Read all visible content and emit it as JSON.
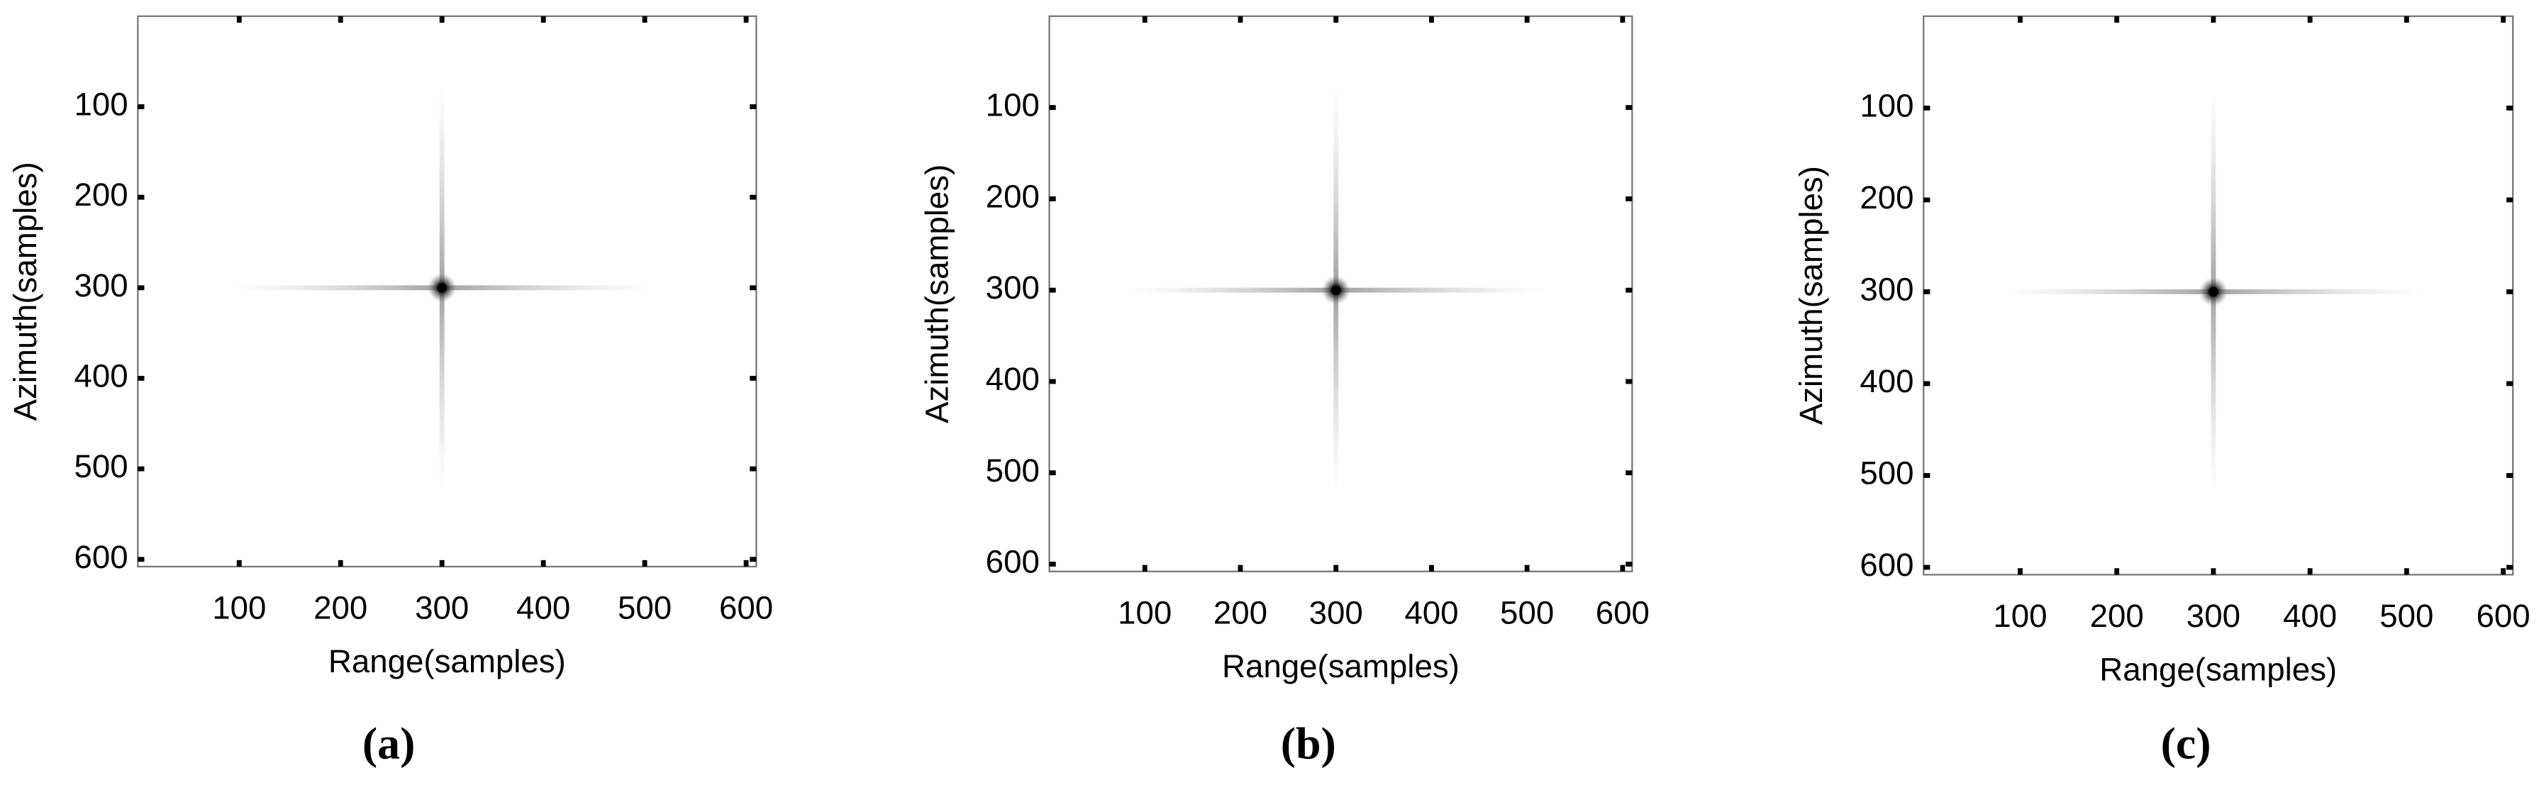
{
  "chart_data": [
    {
      "type": "image",
      "caption": "(a)",
      "xlabel": "Range(samples)",
      "ylabel": "Azimuth(samples)",
      "xlim": [
        0,
        610
      ],
      "ylim": [
        0,
        608
      ],
      "y_inverted": true,
      "xticks": [
        100,
        200,
        300,
        400,
        500,
        600
      ],
      "yticks": [
        100,
        200,
        300,
        400,
        500,
        600
      ],
      "points": {
        "x": [
          300
        ],
        "y": [
          300
        ]
      },
      "color": "#000000"
    },
    {
      "type": "image",
      "caption": "(b)",
      "xlabel": "Range(samples)",
      "ylabel": "Azimuth(samples)",
      "xlim": [
        0,
        610
      ],
      "ylim": [
        0,
        608
      ],
      "y_inverted": true,
      "xticks": [
        100,
        200,
        300,
        400,
        500,
        600
      ],
      "yticks": [
        100,
        200,
        300,
        400,
        500,
        600
      ],
      "points": {
        "x": [
          300
        ],
        "y": [
          300
        ]
      },
      "color": "#000000"
    },
    {
      "type": "image",
      "caption": "(c)",
      "xlabel": "Range(samples)",
      "ylabel": "Azimuth(samples)",
      "xlim": [
        0,
        610
      ],
      "ylim": [
        0,
        608
      ],
      "y_inverted": true,
      "xticks": [
        100,
        200,
        300,
        400,
        500,
        600
      ],
      "yticks": [
        100,
        200,
        300,
        400,
        500,
        600
      ],
      "points": {
        "x": [
          300
        ],
        "y": [
          300
        ]
      },
      "color": "#000000"
    }
  ]
}
